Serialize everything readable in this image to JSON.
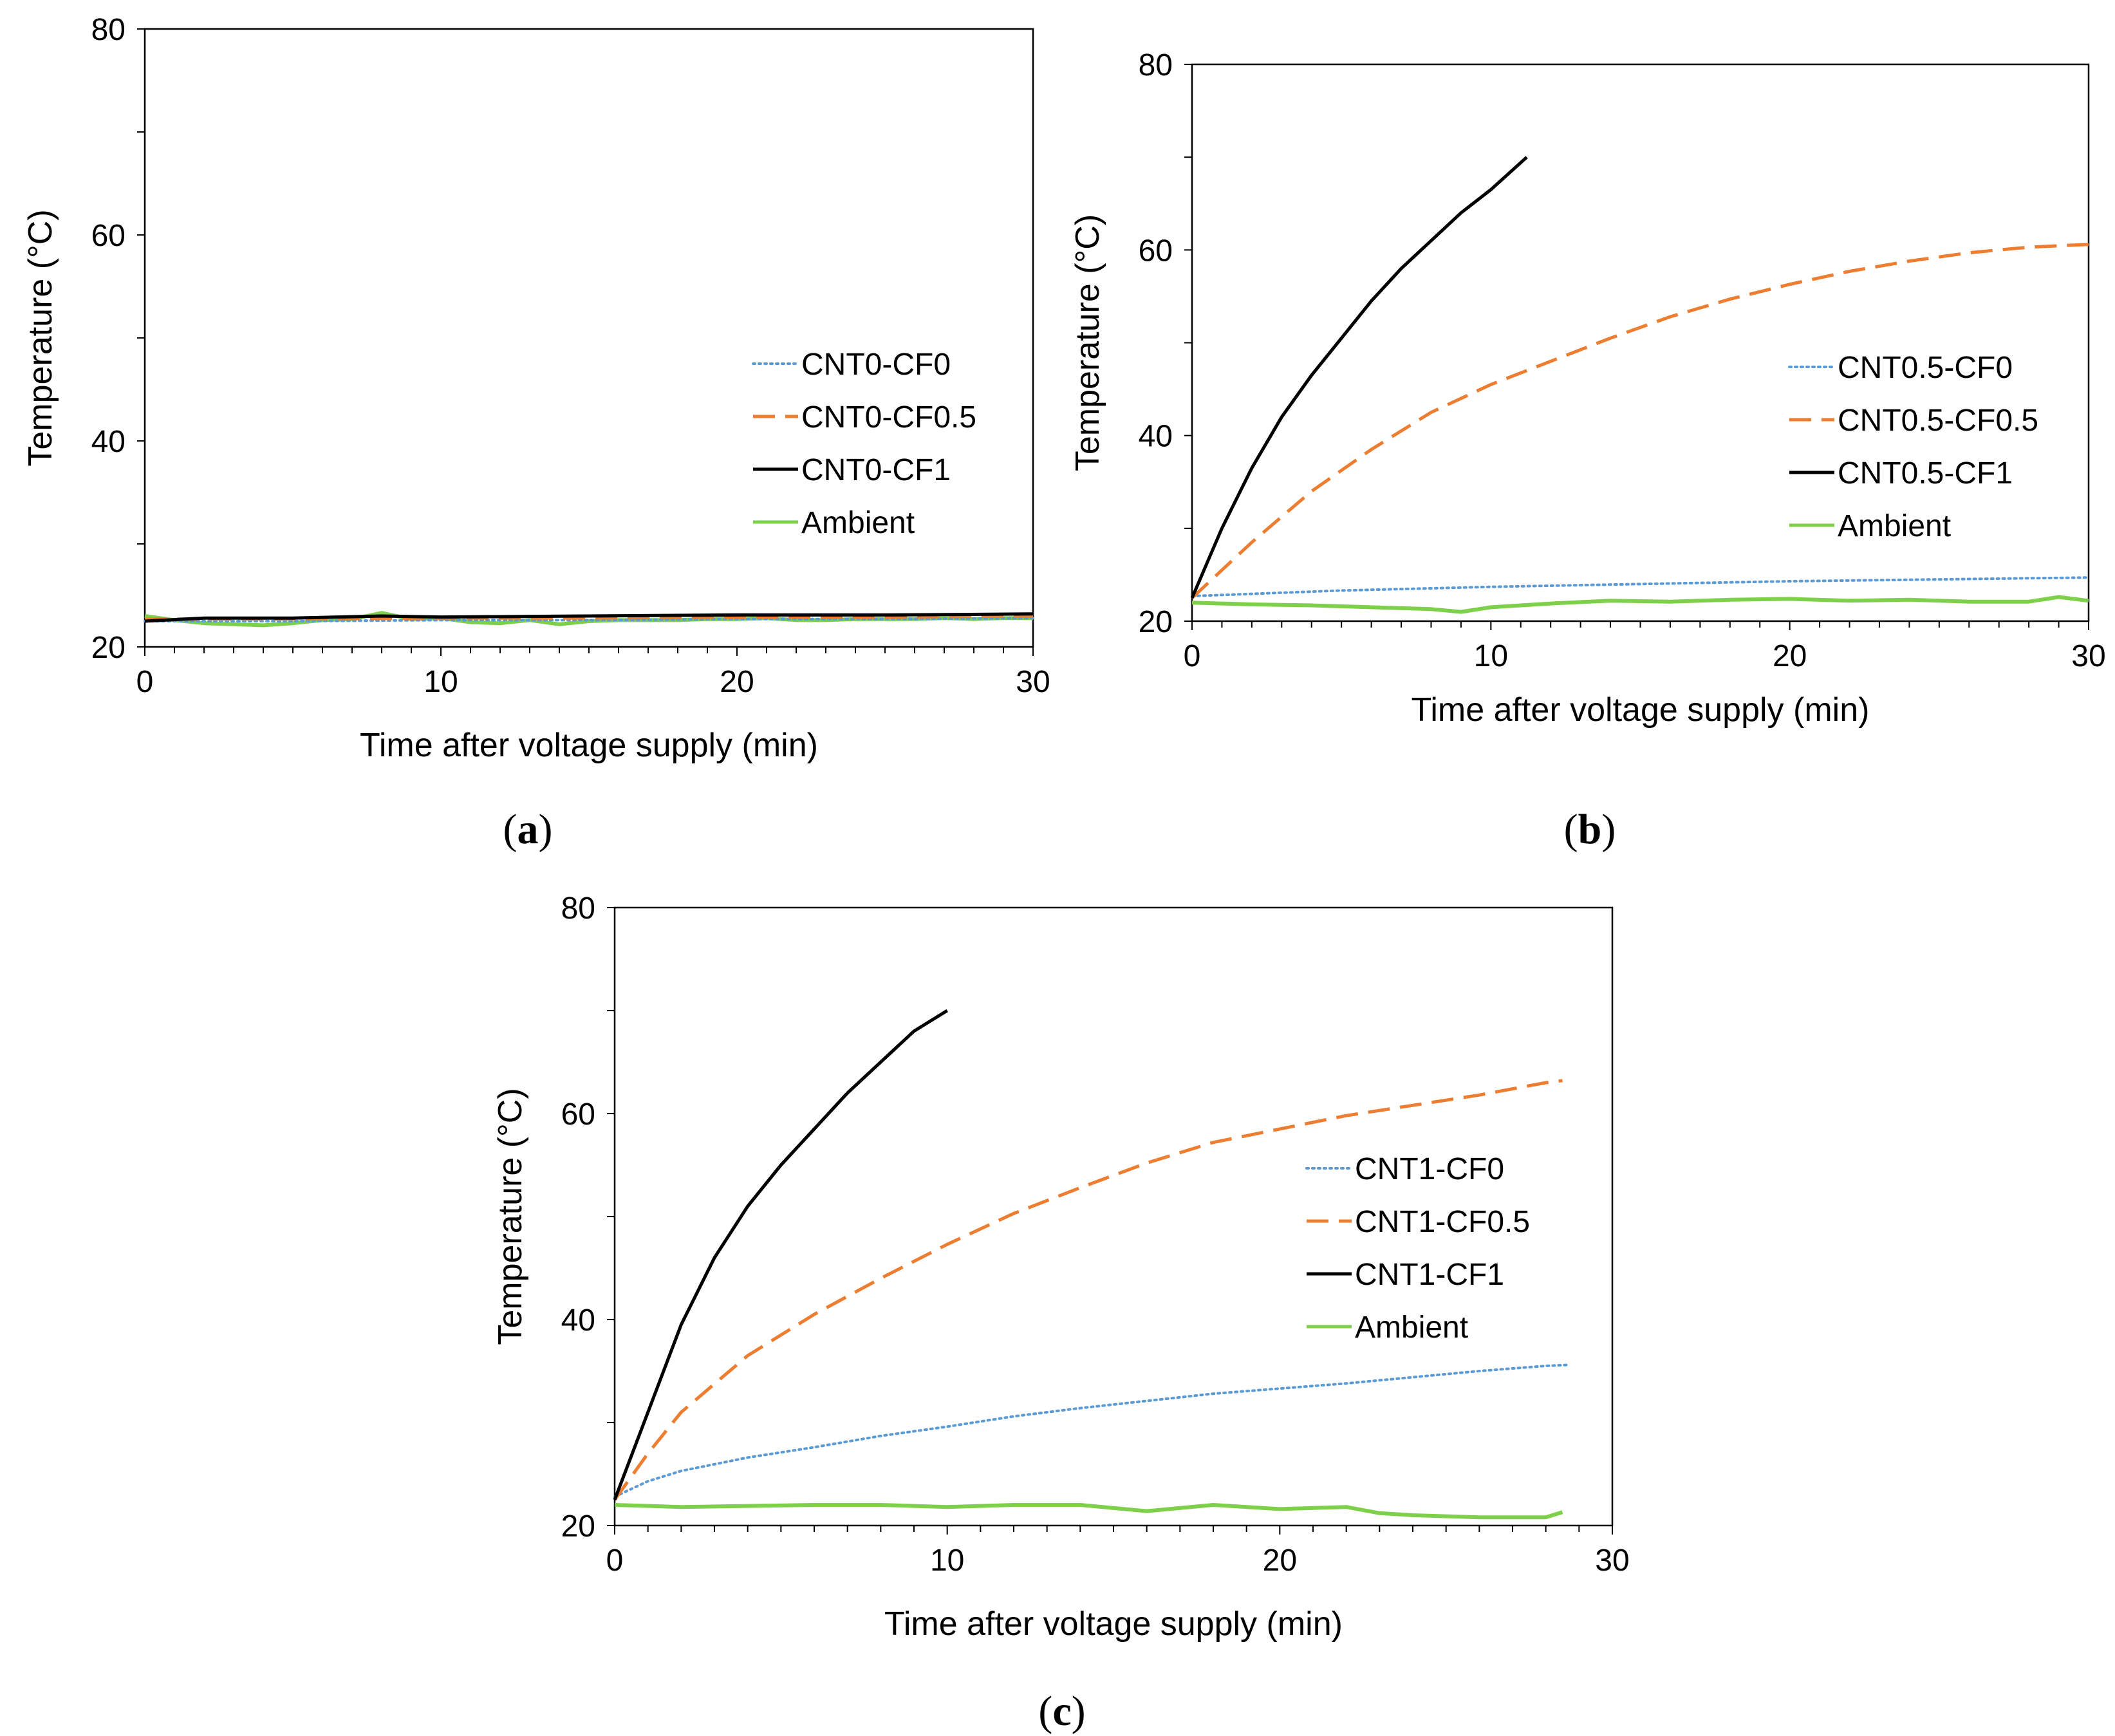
{
  "figure": {
    "panels": [
      "(a)",
      "(b)",
      "(c)"
    ]
  },
  "colors": {
    "CF0": "#5b9bd5",
    "CF0.5": "#ed7d31",
    "CF1": "#000000",
    "Ambient": "#7ed04b"
  },
  "chart_data": [
    {
      "type": "line",
      "panel_label": "(a)",
      "xlabel": "Time after voltage supply (min)",
      "ylabel": "Temperature (°C)",
      "xlim": [
        0,
        30
      ],
      "ylim": [
        20,
        80
      ],
      "xticks": [
        0,
        10,
        20,
        30
      ],
      "yticks": [
        20,
        40,
        60,
        80
      ],
      "legend_position": "right-middle",
      "series": [
        {
          "name": "CNT0-CF0",
          "style": "dotted",
          "color_key": "CF0",
          "x": [
            0,
            5,
            10,
            15,
            20,
            25,
            30
          ],
          "y": [
            22.5,
            22.5,
            22.6,
            22.6,
            22.7,
            22.7,
            22.8
          ]
        },
        {
          "name": "CNT0-CF0.5",
          "style": "dashed",
          "color_key": "CF0.5",
          "x": [
            0,
            5,
            10,
            15,
            20,
            25,
            30
          ],
          "y": [
            22.7,
            22.7,
            22.8,
            22.8,
            22.9,
            22.9,
            23.0
          ]
        },
        {
          "name": "CNT0-CF1",
          "style": "solid",
          "color_key": "CF1",
          "x": [
            0,
            2,
            5,
            8,
            10,
            15,
            20,
            25,
            30
          ],
          "y": [
            22.5,
            22.8,
            22.8,
            23.0,
            22.9,
            23.0,
            23.1,
            23.1,
            23.2
          ]
        },
        {
          "name": "Ambient",
          "style": "solid",
          "color_key": "Ambient",
          "x": [
            0,
            1,
            2,
            3,
            4,
            5,
            6,
            7,
            8,
            9,
            10,
            11,
            12,
            13,
            14,
            15,
            16,
            17,
            18,
            19,
            20,
            21,
            22,
            23,
            24,
            25,
            26,
            27,
            28,
            29,
            30
          ],
          "y": [
            23.0,
            22.6,
            22.3,
            22.2,
            22.1,
            22.3,
            22.6,
            22.7,
            23.3,
            22.7,
            22.8,
            22.4,
            22.3,
            22.6,
            22.2,
            22.5,
            22.6,
            22.6,
            22.6,
            22.7,
            22.7,
            22.8,
            22.6,
            22.6,
            22.7,
            22.7,
            22.7,
            22.8,
            22.7,
            22.8,
            22.8
          ]
        }
      ]
    },
    {
      "type": "line",
      "panel_label": "(b)",
      "xlabel": "Time after voltage supply (min)",
      "ylabel": "Temperature (°C)",
      "xlim": [
        0,
        30
      ],
      "ylim": [
        20,
        80
      ],
      "xticks": [
        0,
        10,
        20,
        30
      ],
      "yticks": [
        20,
        40,
        60,
        80
      ],
      "legend_position": "right-middle",
      "series": [
        {
          "name": "CNT0.5-CF0",
          "style": "dotted",
          "color_key": "CF0",
          "x": [
            0,
            5,
            10,
            15,
            20,
            25,
            30
          ],
          "y": [
            22.7,
            23.3,
            23.7,
            24.0,
            24.3,
            24.5,
            24.7
          ]
        },
        {
          "name": "CNT0.5-CF0.5",
          "style": "dashed",
          "color_key": "CF0.5",
          "x": [
            0,
            1,
            2,
            4,
            6,
            8,
            10,
            12,
            14,
            16,
            18,
            20,
            22,
            24,
            26,
            28,
            30
          ],
          "y": [
            22.5,
            25.5,
            28.5,
            34.0,
            38.5,
            42.5,
            45.5,
            48.0,
            50.5,
            52.8,
            54.7,
            56.3,
            57.7,
            58.8,
            59.7,
            60.3,
            60.6
          ]
        },
        {
          "name": "CNT0.5-CF1",
          "style": "solid",
          "color_key": "CF1",
          "x": [
            0,
            1,
            2,
            3,
            4,
            5,
            6,
            7,
            8,
            9,
            10,
            11.2
          ],
          "y": [
            22.5,
            30.0,
            36.5,
            42.0,
            46.5,
            50.5,
            54.5,
            58.0,
            61.0,
            64.0,
            66.5,
            70.0
          ]
        },
        {
          "name": "Ambient",
          "style": "solid",
          "color_key": "Ambient",
          "x": [
            0,
            2,
            4,
            6,
            8,
            9,
            10,
            12,
            14,
            16,
            18,
            20,
            22,
            24,
            26,
            28,
            29,
            30
          ],
          "y": [
            22.0,
            21.8,
            21.7,
            21.5,
            21.3,
            21.0,
            21.5,
            21.9,
            22.2,
            22.1,
            22.3,
            22.4,
            22.2,
            22.3,
            22.1,
            22.1,
            22.6,
            22.2
          ]
        }
      ]
    },
    {
      "type": "line",
      "panel_label": "(c)",
      "xlabel": "Time after voltage supply (min)",
      "ylabel": "Temperature (°C)",
      "xlim": [
        0,
        30
      ],
      "ylim": [
        20,
        80
      ],
      "xticks": [
        0,
        10,
        20,
        30
      ],
      "yticks": [
        20,
        40,
        60,
        80
      ],
      "legend_position": "right-middle",
      "series": [
        {
          "name": "CNT1-CF0",
          "style": "dotted",
          "color_key": "CF0",
          "x": [
            0,
            1,
            2,
            4,
            6,
            8,
            10,
            12,
            14,
            16,
            18,
            20,
            22,
            24,
            26,
            28,
            28.7
          ],
          "y": [
            22.8,
            24.3,
            25.3,
            26.6,
            27.6,
            28.7,
            29.6,
            30.6,
            31.4,
            32.1,
            32.8,
            33.3,
            33.8,
            34.4,
            35.0,
            35.5,
            35.6
          ]
        },
        {
          "name": "CNT1-CF0.5",
          "style": "dashed",
          "color_key": "CF0.5",
          "x": [
            0,
            1,
            2,
            4,
            6,
            8,
            10,
            12,
            14,
            16,
            18,
            20,
            22,
            24,
            26,
            28,
            28.5
          ],
          "y": [
            22.5,
            27.0,
            31.0,
            36.5,
            40.5,
            44.0,
            47.3,
            50.3,
            52.8,
            55.2,
            57.2,
            58.5,
            59.8,
            60.8,
            61.8,
            63.0,
            63.2
          ]
        },
        {
          "name": "CNT1-CF1",
          "style": "solid",
          "color_key": "CF1",
          "x": [
            0,
            1,
            2,
            3,
            4,
            5,
            6,
            7,
            8,
            9,
            10
          ],
          "y": [
            22.5,
            31.0,
            39.5,
            46.0,
            51.0,
            55.0,
            58.5,
            62.0,
            65.0,
            68.0,
            70.0
          ]
        },
        {
          "name": "Ambient",
          "style": "solid",
          "color_key": "Ambient",
          "x": [
            0,
            2,
            4,
            6,
            8,
            10,
            12,
            14,
            16,
            18,
            20,
            22,
            23,
            24,
            26,
            28,
            28.5
          ],
          "y": [
            22.0,
            21.8,
            21.9,
            22.0,
            22.0,
            21.8,
            22.0,
            22.0,
            21.4,
            22.0,
            21.6,
            21.8,
            21.2,
            21.0,
            20.8,
            20.8,
            21.3
          ]
        }
      ]
    }
  ]
}
